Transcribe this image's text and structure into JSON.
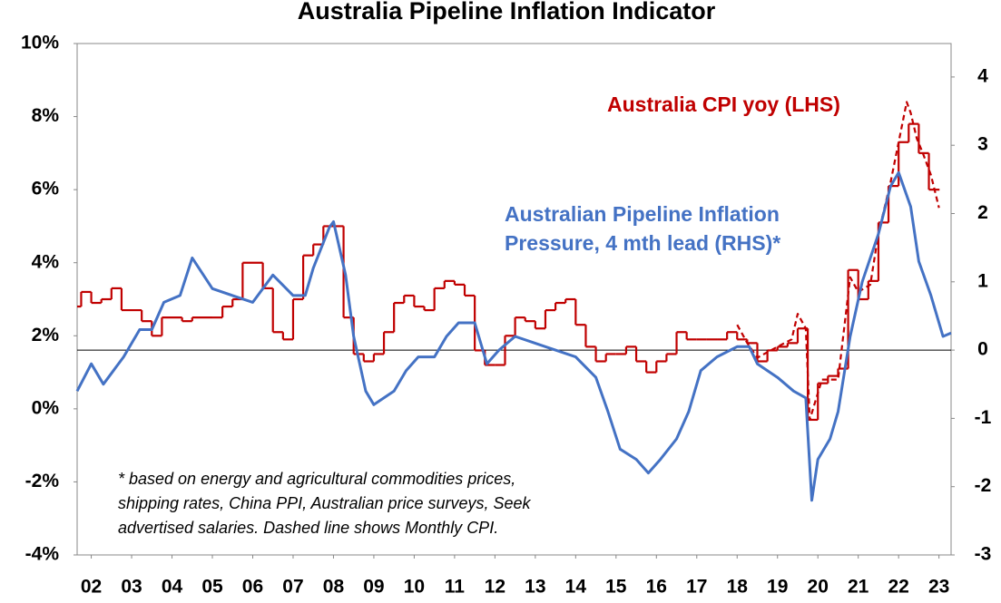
{
  "chart_data": {
    "type": "line",
    "title": "Australia Pipeline Inflation Indicator",
    "annotations": [
      {
        "text": "Australia CPI yoy (LHS)",
        "color": "#c00000"
      },
      {
        "text": "Australian Pipeline Inflation",
        "color": "#4472c4"
      },
      {
        "text": "Pressure, 4 mth lead (RHS)*",
        "color": "#4472c4"
      }
    ],
    "footnote": [
      "* based on energy and agricultural commodities prices,",
      "shipping rates, China PPI, Australian price surveys, Seek",
      "advertised salaries. Dashed line shows Monthly CPI."
    ],
    "xlim": [
      2002.15,
      2023.8
    ],
    "xticks": [
      {
        "value": 2002.5,
        "label": "02"
      },
      {
        "value": 2003.5,
        "label": "03"
      },
      {
        "value": 2004.5,
        "label": "04"
      },
      {
        "value": 2005.5,
        "label": "05"
      },
      {
        "value": 2006.5,
        "label": "06"
      },
      {
        "value": 2007.5,
        "label": "07"
      },
      {
        "value": 2008.5,
        "label": "08"
      },
      {
        "value": 2009.5,
        "label": "09"
      },
      {
        "value": 2010.5,
        "label": "10"
      },
      {
        "value": 2011.5,
        "label": "11"
      },
      {
        "value": 2012.5,
        "label": "12"
      },
      {
        "value": 2013.5,
        "label": "13"
      },
      {
        "value": 2014.5,
        "label": "14"
      },
      {
        "value": 2015.5,
        "label": "15"
      },
      {
        "value": 2016.5,
        "label": "16"
      },
      {
        "value": 2017.5,
        "label": "17"
      },
      {
        "value": 2018.5,
        "label": "18"
      },
      {
        "value": 2019.5,
        "label": "19"
      },
      {
        "value": 2020.5,
        "label": "20"
      },
      {
        "value": 2021.5,
        "label": "21"
      },
      {
        "value": 2022.5,
        "label": "22"
      },
      {
        "value": 2023.5,
        "label": "23"
      }
    ],
    "ylim": [
      -4,
      10
    ],
    "yticks": [
      {
        "value": -4,
        "label": "-4%"
      },
      {
        "value": -2,
        "label": "-2%"
      },
      {
        "value": 0,
        "label": "0%"
      },
      {
        "value": 2,
        "label": "2%"
      },
      {
        "value": 4,
        "label": "4%"
      },
      {
        "value": 6,
        "label": "6%"
      },
      {
        "value": 8,
        "label": "8%"
      },
      {
        "value": 10,
        "label": "10%"
      }
    ],
    "y2lim": [
      -3,
      4.49
    ],
    "y2ticks": [
      -3,
      -2,
      -1,
      0,
      1,
      2,
      3,
      4
    ],
    "series": [
      {
        "name": "Australia CPI yoy (LHS)",
        "color": "#c00000",
        "step": true,
        "x": [
          2002.15,
          2002.25,
          2002.5,
          2002.75,
          2003.0,
          2003.25,
          2003.75,
          2004.0,
          2004.25,
          2004.75,
          2005.0,
          2005.5,
          2005.75,
          2006.0,
          2006.25,
          2006.75,
          2007.0,
          2007.25,
          2007.5,
          2007.75,
          2008.0,
          2008.25,
          2008.75,
          2009.0,
          2009.25,
          2009.5,
          2009.75,
          2010.0,
          2010.25,
          2010.5,
          2010.75,
          2011.0,
          2011.25,
          2011.5,
          2011.75,
          2012.0,
          2012.25,
          2012.5,
          2012.75,
          2013.0,
          2013.25,
          2013.5,
          2013.75,
          2014.0,
          2014.25,
          2014.5,
          2014.75,
          2015.0,
          2015.25,
          2015.5,
          2015.75,
          2016.0,
          2016.25,
          2016.5,
          2016.75,
          2017.0,
          2017.25,
          2017.5,
          2017.75,
          2018.0,
          2018.25,
          2018.5,
          2018.75,
          2019.0,
          2019.25,
          2019.5,
          2019.75,
          2020.0,
          2020.25,
          2020.5,
          2020.75,
          2021.0,
          2021.25,
          2021.5,
          2021.75,
          2022.0,
          2022.25,
          2022.5,
          2022.75,
          2023.0,
          2023.25
        ],
        "values": [
          2.8,
          3.2,
          2.9,
          3.0,
          3.3,
          2.7,
          2.4,
          2.0,
          2.5,
          2.4,
          2.5,
          2.5,
          2.8,
          3.0,
          4.0,
          3.3,
          2.1,
          1.9,
          3.0,
          4.2,
          4.5,
          5.0,
          2.5,
          1.5,
          1.3,
          1.5,
          2.1,
          2.9,
          3.1,
          2.8,
          2.7,
          3.3,
          3.5,
          3.4,
          3.1,
          1.6,
          1.2,
          1.2,
          2.0,
          2.5,
          2.4,
          2.2,
          2.7,
          2.9,
          3.0,
          2.3,
          1.7,
          1.3,
          1.5,
          1.5,
          1.7,
          1.3,
          1.0,
          1.3,
          1.5,
          2.1,
          1.9,
          1.9,
          1.9,
          1.9,
          2.1,
          1.9,
          1.8,
          1.3,
          1.6,
          1.7,
          1.8,
          2.2,
          -0.3,
          0.7,
          0.9,
          1.1,
          3.8,
          3.0,
          3.5,
          5.1,
          6.1,
          7.3,
          7.8,
          7.0,
          6.0
        ]
      },
      {
        "name": "Monthly CPI",
        "color": "#c00000",
        "dashed": true,
        "x": [
          2018.5,
          2018.75,
          2019.0,
          2019.5,
          2019.85,
          2020.0,
          2020.2,
          2020.3,
          2020.6,
          2021.0,
          2021.3,
          2021.5,
          2021.8,
          2022.0,
          2022.3,
          2022.5,
          2022.7,
          2022.8,
          2022.95,
          2023.1,
          2023.3,
          2023.5
        ],
        "values": [
          2.3,
          1.8,
          1.4,
          1.7,
          1.9,
          2.6,
          2.2,
          -0.3,
          0.8,
          0.8,
          3.6,
          3.2,
          3.4,
          4.8,
          6.2,
          7.3,
          8.4,
          8.1,
          7.4,
          7.0,
          6.4,
          5.5
        ]
      },
      {
        "name": "Australian Pipeline Inflation Pressure",
        "color": "#4472c4",
        "axis": "y2",
        "x": [
          2002.15,
          2002.5,
          2002.8,
          2003.3,
          2003.7,
          2004.0,
          2004.3,
          2004.7,
          2005.0,
          2005.5,
          2006.0,
          2006.5,
          2007.0,
          2007.5,
          2007.8,
          2008.0,
          2008.4,
          2008.5,
          2008.8,
          2009.0,
          2009.3,
          2009.5,
          2010.0,
          2010.3,
          2010.6,
          2011.0,
          2011.3,
          2011.6,
          2012.0,
          2012.3,
          2012.6,
          2013.0,
          2013.5,
          2014.0,
          2014.5,
          2015.0,
          2015.3,
          2015.6,
          2016.0,
          2016.3,
          2016.6,
          2017.0,
          2017.3,
          2017.6,
          2018.0,
          2018.5,
          2018.8,
          2019.0,
          2019.5,
          2019.9,
          2020.2,
          2020.35,
          2020.5,
          2020.8,
          2021.0,
          2021.3,
          2021.6,
          2022.0,
          2022.3,
          2022.5,
          2022.8,
          2023.0,
          2023.3,
          2023.6,
          2023.8
        ],
        "values": [
          -0.6,
          -0.2,
          -0.5,
          -0.1,
          0.3,
          0.3,
          0.7,
          0.8,
          1.35,
          0.9,
          0.8,
          0.7,
          1.1,
          0.8,
          0.8,
          1.2,
          1.8,
          1.88,
          1.1,
          0.2,
          -0.6,
          -0.8,
          -0.6,
          -0.3,
          -0.1,
          -0.1,
          0.2,
          0.4,
          0.4,
          -0.2,
          0.0,
          0.2,
          0.1,
          0.0,
          -0.1,
          -0.4,
          -0.9,
          -1.45,
          -1.6,
          -1.8,
          -1.6,
          -1.3,
          -0.9,
          -0.3,
          -0.1,
          0.05,
          0.05,
          -0.2,
          -0.4,
          -0.6,
          -0.7,
          -2.2,
          -1.6,
          -1.3,
          -0.9,
          0.2,
          1.0,
          1.7,
          2.4,
          2.6,
          2.1,
          1.3,
          0.8,
          0.2,
          0.25
        ]
      }
    ]
  }
}
